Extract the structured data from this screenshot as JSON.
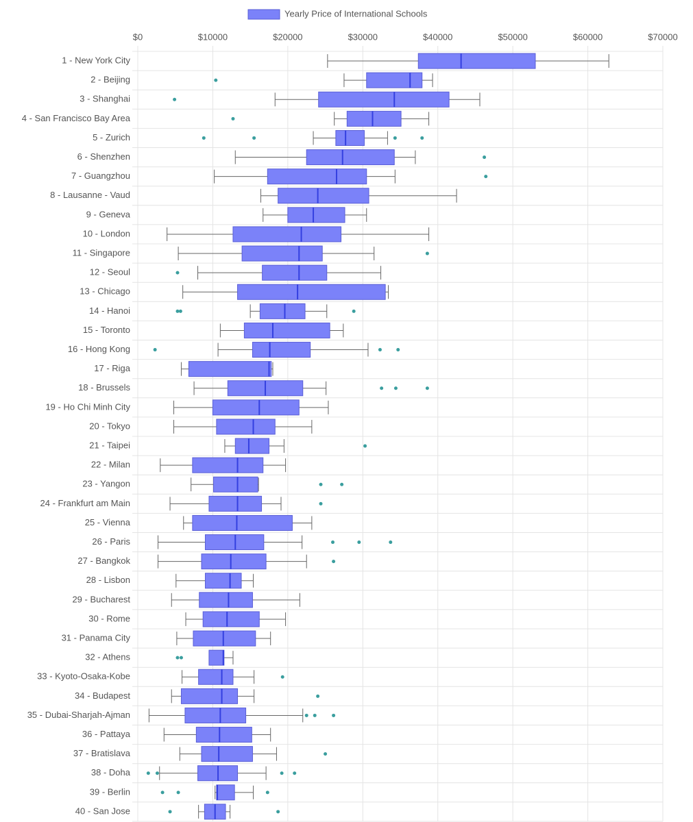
{
  "chart_data": {
    "type": "boxplot",
    "orientation": "horizontal",
    "categories": [
      "1 - New York City",
      "2 - Beijing",
      "3 - Shanghai",
      "4 - San Francisco Bay Area",
      "5 - Zurich",
      "6 - Shenzhen",
      "7 - Guangzhou",
      "8 - Lausanne - Vaud",
      "9 - Geneva",
      "10 - London",
      "11 - Singapore",
      "12 - Seoul",
      "13 - Chicago",
      "14 - Hanoi",
      "15 - Toronto",
      "16 - Hong Kong",
      "17 - Riga",
      "18 - Brussels",
      "19 - Ho Chi Minh City",
      "20 - Tokyo",
      "21 - Taipei",
      "22 - Milan",
      "23 - Yangon",
      "24 - Frankfurt am Main",
      "25 - Vienna",
      "26 - Paris",
      "27 - Bangkok",
      "28 - Lisbon",
      "29 - Bucharest",
      "30 - Rome",
      "31 - Panama City",
      "32 - Athens",
      "33 - Kyoto-Osaka-Kobe",
      "34 - Budapest",
      "35 - Dubai-Sharjah-Ajman",
      "36 - Pattaya",
      "37 - Bratislava",
      "38 - Doha",
      "39 - Berlin",
      "40 - San Jose"
    ],
    "series": [
      {
        "name": "Yearly Price of International Schools",
        "color": "#7b82f9",
        "border_color": "#5a5fd6",
        "median_color": "#3440e0",
        "whisker_color": "#666666",
        "outlier_color": "#3a9e9e",
        "min": [
          25300,
          27500,
          18300,
          26200,
          23400,
          13000,
          10200,
          16400,
          16700,
          3900,
          5400,
          8000,
          6000,
          15000,
          11000,
          10700,
          5800,
          7500,
          4800,
          4800,
          11600,
          3000,
          7100,
          4300,
          6100,
          2700,
          2700,
          5100,
          4500,
          6400,
          5200,
          9500,
          5900,
          4500,
          1500,
          3500,
          5600,
          2900,
          10300,
          8100
        ],
        "q1": [
          37400,
          30500,
          24100,
          27900,
          26400,
          22500,
          17300,
          18700,
          20000,
          12700,
          13900,
          16600,
          13300,
          16300,
          14200,
          15300,
          6800,
          12000,
          10000,
          10500,
          13000,
          7300,
          10100,
          9500,
          7300,
          9000,
          8500,
          9000,
          8200,
          8700,
          7400,
          9500,
          8100,
          5800,
          6300,
          7800,
          8500,
          8000,
          10500,
          8900
        ],
        "median": [
          43100,
          36300,
          34200,
          31300,
          27700,
          27300,
          26500,
          24000,
          23400,
          21800,
          21500,
          21500,
          21300,
          19600,
          18000,
          17600,
          17500,
          17000,
          16200,
          15400,
          14800,
          13300,
          13300,
          13300,
          13200,
          13000,
          12400,
          12300,
          12100,
          11900,
          11400,
          11400,
          11200,
          11200,
          11000,
          10900,
          10800,
          10700,
          10600,
          10300
        ],
        "q3": [
          53000,
          37900,
          41500,
          35100,
          30200,
          34200,
          30500,
          30800,
          27600,
          27100,
          24600,
          25200,
          33000,
          22300,
          25600,
          23000,
          17800,
          22000,
          21500,
          18300,
          17500,
          16700,
          16000,
          16500,
          20600,
          16800,
          17100,
          13800,
          15300,
          16200,
          15700,
          11500,
          12700,
          13300,
          14400,
          15200,
          15300,
          13300,
          12900,
          11700
        ],
        "max": [
          62800,
          39300,
          45600,
          38800,
          33300,
          37000,
          34300,
          42500,
          30500,
          38800,
          31500,
          32400,
          33400,
          25200,
          27400,
          30700,
          18000,
          25100,
          25400,
          23200,
          19500,
          19700,
          16100,
          19100,
          23200,
          21900,
          22500,
          15400,
          21600,
          19700,
          17700,
          12700,
          15500,
          15500,
          22000,
          17700,
          18500,
          17100,
          15400,
          12300
        ],
        "outliers": [
          [],
          [
            10400
          ],
          [
            4900
          ],
          [
            12700
          ],
          [
            8800,
            15500,
            34300,
            37900
          ],
          [
            46200
          ],
          [
            46400
          ],
          [],
          [],
          [],
          [
            38600
          ],
          [
            5300
          ],
          [],
          [
            5300,
            5700,
            28800
          ],
          [],
          [
            2300,
            32300,
            34700
          ],
          [],
          [
            32500,
            34400,
            38600
          ],
          [],
          [],
          [
            30300
          ],
          [],
          [
            24400,
            27200
          ],
          [
            24400
          ],
          [],
          [
            26000,
            29500,
            33700
          ],
          [
            26100
          ],
          [],
          [],
          [],
          [],
          [
            5300,
            5800
          ],
          [
            19300
          ],
          [
            24000
          ],
          [
            22500,
            23600,
            26100
          ],
          [],
          [
            25000
          ],
          [
            1400,
            2600,
            19200,
            20900
          ],
          [
            3300,
            5400,
            17300
          ],
          [
            4300,
            18700
          ]
        ]
      }
    ],
    "xlim": [
      0,
      70000
    ],
    "xticks": [
      {
        "value": 0,
        "label": "$0"
      },
      {
        "value": 10000,
        "label": "$10000"
      },
      {
        "value": 20000,
        "label": "$20000"
      },
      {
        "value": 30000,
        "label": "$30000"
      },
      {
        "value": 40000,
        "label": "$40000"
      },
      {
        "value": 50000,
        "label": "$50000"
      },
      {
        "value": 60000,
        "label": "$60000"
      },
      {
        "value": 70000,
        "label": "$70000"
      }
    ],
    "grid": true,
    "legend_position": "top"
  }
}
